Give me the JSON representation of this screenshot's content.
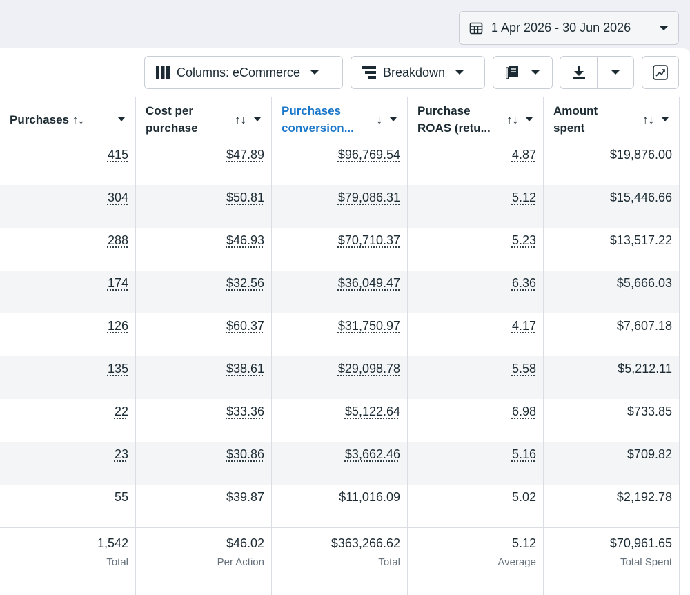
{
  "date_range": {
    "label": "1 Apr 2026 - 30 Jun 2026"
  },
  "toolbar": {
    "columns_label": "Columns: eCommerce",
    "breakdown_label": "Breakdown"
  },
  "table": {
    "headers": [
      {
        "line1": "Purchases",
        "line2": ""
      },
      {
        "line1": "Cost per",
        "line2": "purchase"
      },
      {
        "line1": "Purchases",
        "line2": "conversion..."
      },
      {
        "line1": "Purchase",
        "line2": "ROAS (retu..."
      },
      {
        "line1": "Amount",
        "line2": "spent"
      }
    ],
    "rows": [
      [
        "415",
        "$47.89",
        "$96,769.54",
        "4.87",
        "$19,876.00"
      ],
      [
        "304",
        "$50.81",
        "$79,086.31",
        "5.12",
        "$15,446.66"
      ],
      [
        "288",
        "$46.93",
        "$70,710.37",
        "5.23",
        "$13,517.22"
      ],
      [
        "174",
        "$32.56",
        "$36,049.47",
        "6.36",
        "$5,666.03"
      ],
      [
        "126",
        "$60.37",
        "$31,750.97",
        "4.17",
        "$7,607.18"
      ],
      [
        "135",
        "$38.61",
        "$29,098.78",
        "5.58",
        "$5,212.11"
      ],
      [
        "22",
        "$33.36",
        "$5,122.64",
        "6.98",
        "$733.85"
      ],
      [
        "23",
        "$30.86",
        "$3,662.46",
        "5.16",
        "$709.82"
      ],
      [
        "55",
        "$39.87",
        "$11,016.09",
        "5.02",
        "$2,192.78"
      ]
    ],
    "totals": [
      {
        "value": "1,542",
        "label": "Total"
      },
      {
        "value": "$46.02",
        "label": "Per Action"
      },
      {
        "value": "$363,266.62",
        "label": "Total"
      },
      {
        "value": "5.12",
        "label": "Average"
      },
      {
        "value": "$70,961.65",
        "label": "Total Spent"
      }
    ]
  },
  "colors": {
    "accent": "#1a77c9",
    "text": "#1c2b33",
    "muted": "#65707b",
    "border": "#dadde1"
  },
  "icons": [
    "calendar-icon",
    "columns-icon",
    "breakdown-icon",
    "reports-icon",
    "download-icon",
    "chart-icon",
    "chevron-down-icon",
    "sort-icon"
  ]
}
